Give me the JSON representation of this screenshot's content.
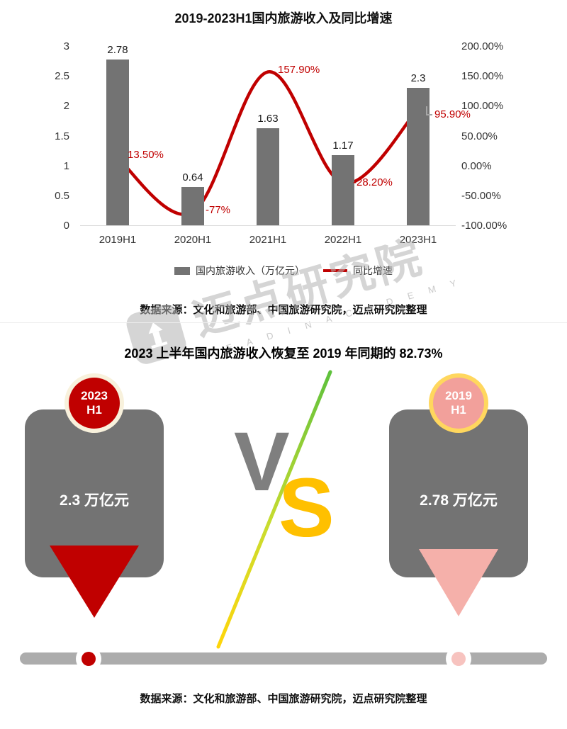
{
  "colors": {
    "bar_gray": "#737373",
    "trend_red": "#C00000",
    "pink": "#F2A09B",
    "gold": "#FFC000",
    "ring_left": "#F8F1DC",
    "ring_right": "#FFD75E",
    "diag_green": "#5EC13C",
    "diag_yellow": "#FFD50A",
    "timeline_gray": "#ACACAC"
  },
  "chart_data": {
    "type": "bar+line",
    "title": "2019-2023H1国内旅游收入及同比增速",
    "categories": [
      "2019H1",
      "2020H1",
      "2021H1",
      "2022H1",
      "2023H1"
    ],
    "series": [
      {
        "name": "国内旅游收入（万亿元）",
        "chart_type": "bar",
        "values": [
          2.78,
          0.64,
          1.63,
          1.17,
          2.3
        ],
        "color": "#737373"
      },
      {
        "name": "同比增速",
        "chart_type": "line",
        "values_pct": [
          13.5,
          -77,
          157.9,
          -28.2,
          95.9
        ],
        "labels": [
          "13.50%",
          "-77%",
          "157.90%",
          "-28.20%",
          "95.90%"
        ],
        "color": "#C00000"
      }
    ],
    "left_axis": {
      "min": 0,
      "max": 3,
      "ticks": [
        "3",
        "2.5",
        "2",
        "1.5",
        "1",
        "0.5",
        "0"
      ]
    },
    "right_axis": {
      "min": -100,
      "max": 200,
      "ticks": [
        "200.00%",
        "150.00%",
        "100.00%",
        "50.00%",
        "0.00%",
        "-50.00%",
        "-100.00%"
      ]
    },
    "legend_position": "bottom",
    "grid": false
  },
  "chart_source": "数据来源：文化和旅游部、中国旅游研究院，迈点研究院整理",
  "comparison": {
    "title": "2023 上半年国内旅游收入恢复至 2019 年同期的 82.73%",
    "vs": {
      "v": "V",
      "s": "S"
    },
    "left_card": {
      "badge_year": "2023",
      "badge_period": "H1",
      "value": "2.3 万亿元"
    },
    "right_card": {
      "badge_year": "2019",
      "badge_period": "H1",
      "value": "2.78 万亿元"
    },
    "source": "数据来源：文化和旅游部、中国旅游研究院，迈点研究院整理"
  },
  "watermark": {
    "text": "迈点研究院",
    "subtext": "M E A D I N   A C A D E M Y"
  }
}
